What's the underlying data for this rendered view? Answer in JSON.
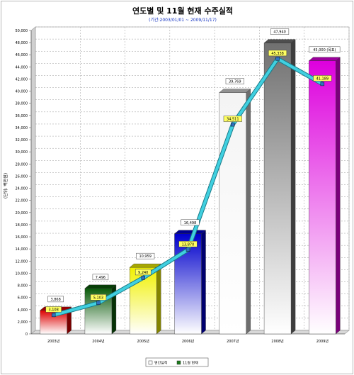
{
  "chart_data": {
    "type": "bar",
    "title": "연도별 및 11월 현재 수주실적",
    "subtitle": "(기간:2003/01/01 ~ 2009/11/17)",
    "ylabel": "(단위: 백만원)",
    "ylim": [
      0,
      50000
    ],
    "yticks": [
      0,
      2000,
      4000,
      6000,
      8000,
      10000,
      12000,
      14000,
      16000,
      18000,
      20000,
      22000,
      24000,
      26000,
      28000,
      30000,
      32000,
      34000,
      36000,
      38000,
      40000,
      42000,
      44000,
      46000,
      48000,
      50000
    ],
    "ytick_labels": [
      "0",
      "2,000",
      "4,000",
      "6,000",
      "8,000",
      "10,000",
      "12,000",
      "14,000",
      "16,000",
      "18,000",
      "20,000",
      "22,000",
      "24,000",
      "26,000",
      "28,000",
      "30,000",
      "32,000",
      "34,000",
      "36,000",
      "38,000",
      "40,000",
      "42,000",
      "44,000",
      "46,000",
      "48,000",
      "50,000"
    ],
    "categories": [
      "2003년",
      "2004년",
      "2005년",
      "2006년",
      "2007년",
      "2008년",
      "2009년"
    ],
    "grid": true,
    "legend_position": "bottom",
    "series": [
      {
        "name": "연간실적",
        "kind": "bar",
        "values": [
          3868,
          7496,
          10959,
          16498,
          39769,
          47940,
          45000
        ],
        "labels": [
          "3,868",
          "7,496",
          "10,959",
          "16,498",
          "39,769",
          "47,940",
          "45,000 (목표)"
        ],
        "colors": [
          "#dd0000",
          "#0a5a0a",
          "#f0f000",
          "#0000cc",
          "#f4f4f4",
          "#707070",
          "#dd00dd"
        ]
      },
      {
        "name": "11월 현재",
        "kind": "line",
        "color": "#40d0e0",
        "values": [
          3108,
          5103,
          9240,
          13870,
          34511,
          45338,
          41189
        ],
        "labels": [
          "3,108",
          "5,103",
          "9,240",
          "13,870",
          "34,511",
          "45,338",
          "41,189"
        ]
      }
    ]
  }
}
